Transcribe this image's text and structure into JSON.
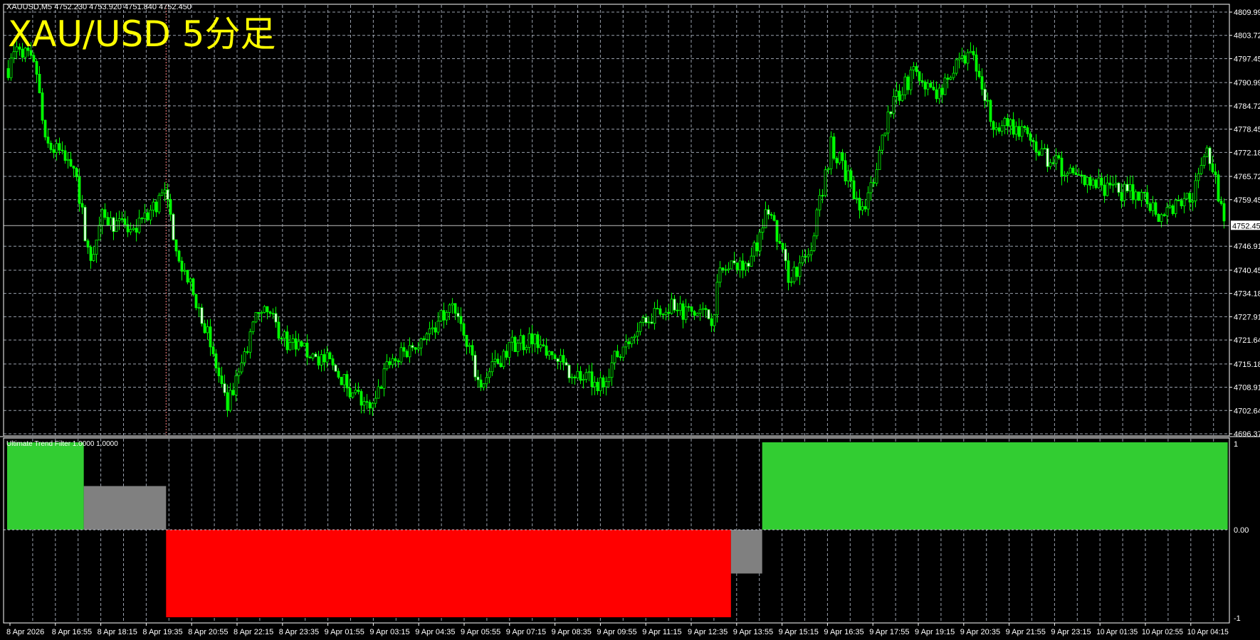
{
  "header": {
    "info": "XAUUSD,M5  4752.230 4753.920 4751.840 4752.450",
    "overlay_title": "XAU/USD 5分足"
  },
  "indicator": {
    "label": "Ultimate Trend Filter 1.0000 1.0000",
    "axis_labels": [
      "1",
      "0.00",
      "-1"
    ]
  },
  "colors": {
    "background": "#000000",
    "candle": "#00ff00",
    "grid": "#c0c8d8",
    "up": "#32cd32",
    "neutral": "#808080",
    "down": "#ff0000",
    "separator": "#ff8080",
    "title": "#ffff00"
  },
  "chart_data": {
    "type": "candlestick",
    "symbol": "XAUUSD",
    "timeframe": "M5",
    "ylim": [
      4696.37,
      4809.99
    ],
    "y_ticks": [
      "4809.99",
      "4803.72",
      "4797.45",
      "4790.99",
      "4784.72",
      "4778.45",
      "4772.18",
      "4765.72",
      "4759.45",
      "4746.91",
      "4740.45",
      "4734.18",
      "4727.91",
      "4721.64",
      "4715.18",
      "4708.91",
      "4702.64",
      "4696.37"
    ],
    "current_price": "4752.45",
    "x_ticks": [
      "8 Apr 2026",
      "8 Apr 16:55",
      "8 Apr 18:15",
      "8 Apr 19:35",
      "8 Apr 20:55",
      "8 Apr 22:15",
      "8 Apr 23:35",
      "9 Apr 01:55",
      "9 Apr 03:15",
      "9 Apr 04:35",
      "9 Apr 05:55",
      "9 Apr 07:15",
      "9 Apr 08:35",
      "9 Apr 09:55",
      "9 Apr 11:15",
      "9 Apr 12:35",
      "9 Apr 13:55",
      "9 Apr 15:15",
      "9 Apr 16:35",
      "9 Apr 17:55",
      "9 Apr 19:15",
      "9 Apr 20:35",
      "9 Apr 21:55",
      "9 Apr 23:15",
      "10 Apr 01:35",
      "10 Apr 02:55",
      "10 Apr 04:15"
    ],
    "grid": true,
    "price_path": [
      [
        "8 Apr 15:30",
        4794.8
      ],
      [
        "8 Apr 15:50",
        4801.3
      ],
      [
        "8 Apr 16:20",
        4793.8
      ],
      [
        "8 Apr 16:35",
        4774.3
      ],
      [
        "8 Apr 17:25",
        4770.0
      ],
      [
        "8 Apr 17:55",
        4741.8
      ],
      [
        "8 Apr 18:15",
        4754.8
      ],
      [
        "8 Apr 19:10",
        4750.5
      ],
      [
        "8 Apr 20:05",
        4761.3
      ],
      [
        "8 Apr 20:35",
        4741.8
      ],
      [
        "8 Apr 21:15",
        4726.7
      ],
      [
        "8 Apr 21:55",
        4702.9
      ],
      [
        "8 Apr 22:55",
        4731.0
      ],
      [
        "8 Apr 23:55",
        4720.2
      ],
      [
        "9 Apr 01:50",
        4715.9
      ],
      [
        "9 Apr 03:10",
        4701.8
      ],
      [
        "9 Apr 03:35",
        4713.7
      ],
      [
        "9 Apr 05:10",
        4726.7
      ],
      [
        "9 Apr 05:35",
        4731.0
      ],
      [
        "9 Apr 06:20",
        4709.4
      ],
      [
        "9 Apr 07:15",
        4720.2
      ],
      [
        "9 Apr 07:55",
        4722.4
      ],
      [
        "9 Apr 08:55",
        4713.7
      ],
      [
        "9 Apr 09:50",
        4709.4
      ],
      [
        "9 Apr 10:50",
        4724.5
      ],
      [
        "9 Apr 11:45",
        4731.0
      ],
      [
        "9 Apr 12:40",
        4728.8
      ],
      [
        "9 Apr 13:10",
        4727.8
      ],
      [
        "9 Apr 13:25",
        4739.7
      ],
      [
        "9 Apr 14:20",
        4744.0
      ],
      [
        "9 Apr 14:50",
        4757.0
      ],
      [
        "9 Apr 15:25",
        4738.6
      ],
      [
        "9 Apr 16:00",
        4744.0
      ],
      [
        "9 Apr 16:40",
        4774.3
      ],
      [
        "9 Apr 17:40",
        4755.9
      ],
      [
        "9 Apr 18:20",
        4782.9
      ],
      [
        "9 Apr 19:05",
        4793.8
      ],
      [
        "9 Apr 19:45",
        4788.4
      ],
      [
        "9 Apr 20:45",
        4799.2
      ],
      [
        "9 Apr 21:25",
        4780.8
      ],
      [
        "9 Apr 22:10",
        4778.6
      ],
      [
        "9 Apr 23:05",
        4770.0
      ],
      [
        "10 Apr 01:00",
        4763.5
      ],
      [
        "10 Apr 02:55",
        4760.2
      ],
      [
        "10 Apr 03:20",
        4754.8
      ],
      [
        "10 Apr 04:20",
        4761.3
      ],
      [
        "10 Apr 04:40",
        4774.3
      ],
      [
        "10 Apr 05:15",
        4752.4
      ]
    ],
    "indicator_segments": [
      {
        "from": "8 Apr 15:30",
        "to": "8 Apr 17:45",
        "value": 1,
        "state": "up"
      },
      {
        "from": "8 Apr 17:45",
        "to": "8 Apr 20:10",
        "value": 0.5,
        "state": "neutral"
      },
      {
        "from": "8 Apr 20:10",
        "to": "9 Apr 13:45",
        "value": -1,
        "state": "down"
      },
      {
        "from": "9 Apr 13:45",
        "to": "9 Apr 14:40",
        "value": -0.5,
        "state": "neutral"
      },
      {
        "from": "9 Apr 14:40",
        "to": "10 Apr 05:20",
        "value": 1,
        "state": "up"
      }
    ],
    "indicator_ylim": [
      -1,
      1
    ]
  }
}
